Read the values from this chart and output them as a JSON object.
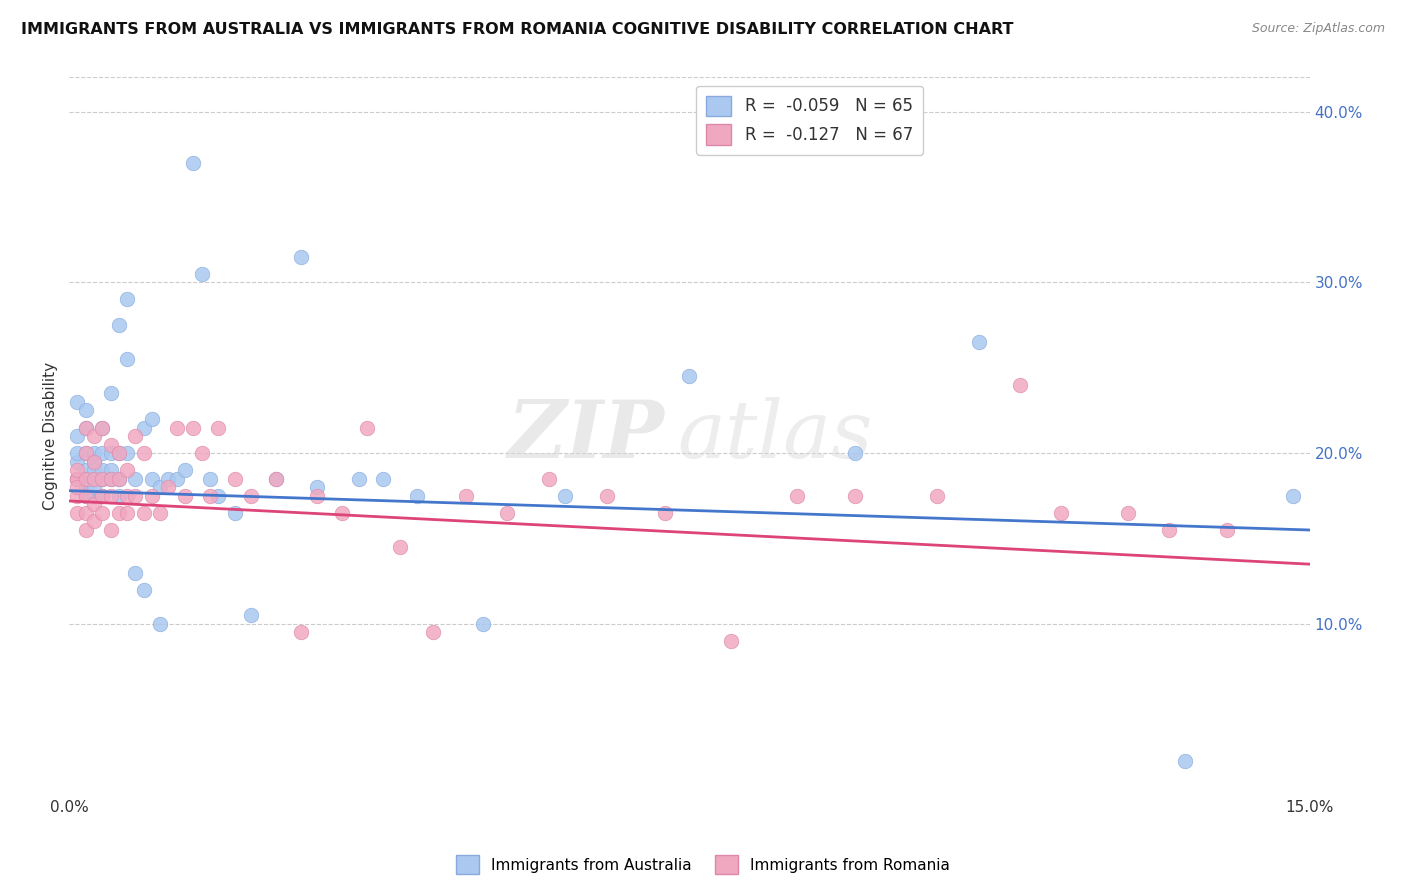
{
  "title": "IMMIGRANTS FROM AUSTRALIA VS IMMIGRANTS FROM ROMANIA COGNITIVE DISABILITY CORRELATION CHART",
  "source": "Source: ZipAtlas.com",
  "xlabel_australia": "Immigrants from Australia",
  "xlabel_romania": "Immigrants from Romania",
  "ylabel": "Cognitive Disability",
  "xlim": [
    0.0,
    0.15
  ],
  "ylim": [
    0.0,
    0.42
  ],
  "R_australia": -0.059,
  "N_australia": 65,
  "R_romania": -0.127,
  "N_romania": 67,
  "color_australia": "#aac8f0",
  "color_romania": "#f0a8c0",
  "line_color_australia": "#4477cc",
  "line_color_romania": "#dd4477",
  "watermark_zip": "ZIP",
  "watermark_atlas": "atlas",
  "aus_x": [
    0.001,
    0.001,
    0.001,
    0.001,
    0.001,
    0.001,
    0.002,
    0.002,
    0.002,
    0.002,
    0.002,
    0.002,
    0.002,
    0.003,
    0.003,
    0.003,
    0.003,
    0.003,
    0.003,
    0.004,
    0.004,
    0.004,
    0.004,
    0.004,
    0.005,
    0.005,
    0.005,
    0.005,
    0.006,
    0.006,
    0.006,
    0.006,
    0.007,
    0.007,
    0.007,
    0.008,
    0.008,
    0.009,
    0.009,
    0.01,
    0.01,
    0.011,
    0.011,
    0.012,
    0.013,
    0.014,
    0.015,
    0.016,
    0.017,
    0.018,
    0.02,
    0.022,
    0.025,
    0.028,
    0.03,
    0.035,
    0.038,
    0.042,
    0.05,
    0.06,
    0.075,
    0.095,
    0.11,
    0.135,
    0.148
  ],
  "aus_y": [
    0.185,
    0.195,
    0.2,
    0.21,
    0.23,
    0.185,
    0.19,
    0.2,
    0.215,
    0.225,
    0.18,
    0.175,
    0.185,
    0.195,
    0.2,
    0.175,
    0.185,
    0.19,
    0.18,
    0.2,
    0.215,
    0.185,
    0.175,
    0.19,
    0.235,
    0.2,
    0.19,
    0.185,
    0.275,
    0.2,
    0.185,
    0.175,
    0.29,
    0.255,
    0.2,
    0.185,
    0.13,
    0.215,
    0.12,
    0.22,
    0.185,
    0.18,
    0.1,
    0.185,
    0.185,
    0.19,
    0.37,
    0.305,
    0.185,
    0.175,
    0.165,
    0.105,
    0.185,
    0.315,
    0.18,
    0.185,
    0.185,
    0.175,
    0.1,
    0.175,
    0.245,
    0.2,
    0.265,
    0.02,
    0.175
  ],
  "rom_x": [
    0.001,
    0.001,
    0.001,
    0.001,
    0.001,
    0.001,
    0.002,
    0.002,
    0.002,
    0.002,
    0.002,
    0.002,
    0.003,
    0.003,
    0.003,
    0.003,
    0.003,
    0.004,
    0.004,
    0.004,
    0.004,
    0.005,
    0.005,
    0.005,
    0.005,
    0.006,
    0.006,
    0.006,
    0.007,
    0.007,
    0.007,
    0.008,
    0.008,
    0.009,
    0.009,
    0.01,
    0.011,
    0.012,
    0.013,
    0.014,
    0.015,
    0.016,
    0.017,
    0.018,
    0.02,
    0.022,
    0.025,
    0.028,
    0.03,
    0.033,
    0.036,
    0.04,
    0.044,
    0.048,
    0.053,
    0.058,
    0.065,
    0.072,
    0.08,
    0.088,
    0.095,
    0.105,
    0.115,
    0.12,
    0.128,
    0.133,
    0.14
  ],
  "rom_y": [
    0.185,
    0.185,
    0.175,
    0.165,
    0.18,
    0.19,
    0.215,
    0.2,
    0.185,
    0.175,
    0.165,
    0.155,
    0.21,
    0.195,
    0.185,
    0.17,
    0.16,
    0.215,
    0.185,
    0.175,
    0.165,
    0.205,
    0.185,
    0.175,
    0.155,
    0.2,
    0.185,
    0.165,
    0.19,
    0.175,
    0.165,
    0.21,
    0.175,
    0.2,
    0.165,
    0.175,
    0.165,
    0.18,
    0.215,
    0.175,
    0.215,
    0.2,
    0.175,
    0.215,
    0.185,
    0.175,
    0.185,
    0.095,
    0.175,
    0.165,
    0.215,
    0.145,
    0.095,
    0.175,
    0.165,
    0.185,
    0.175,
    0.165,
    0.09,
    0.175,
    0.175,
    0.175,
    0.24,
    0.165,
    0.165,
    0.155,
    0.155
  ]
}
